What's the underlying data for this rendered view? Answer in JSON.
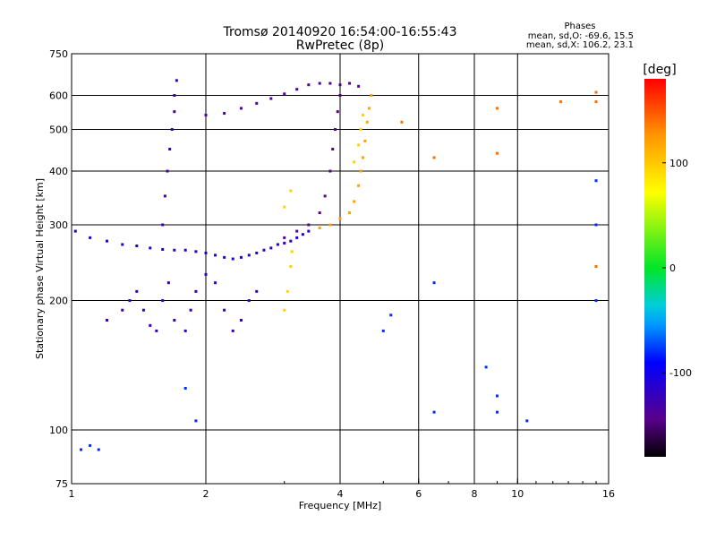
{
  "chart_data": {
    "type": "scatter",
    "title": "Tromsø 20140920 16:54:00-16:55:43",
    "subtitle": "RwPretec (8p)",
    "xlabel": "Frequency [MHz]",
    "ylabel": "Stationary phase Virtual Height [km]",
    "x_scale": "log",
    "y_scale": "log",
    "xlim": [
      1,
      16
    ],
    "ylim": [
      75,
      750
    ],
    "x_ticks": [
      1,
      2,
      4,
      6,
      8,
      10,
      16
    ],
    "x_tick_labels": [
      "1",
      "2",
      "4",
      "6",
      "8",
      "10",
      "16"
    ],
    "y_ticks": [
      75,
      100,
      200,
      300,
      400,
      500,
      600,
      750
    ],
    "y_tick_labels": [
      "75",
      "100",
      "200",
      "300",
      "400",
      "500",
      "600",
      "750"
    ],
    "grid": true,
    "stats": {
      "heading": "Phases",
      "line_o": "mean, sd,O: -69.6, 15.5",
      "line_x": "mean, sd,X: 106.2, 23.1"
    },
    "colorbar": {
      "label": "[deg]",
      "range": [
        -180,
        180
      ],
      "ticks": [
        100,
        0,
        -100
      ],
      "tick_labels": [
        "100",
        "0",
        "-100"
      ],
      "colormap": "rainbow"
    },
    "series": [
      {
        "trace": "lower-F-region-O-trace",
        "phase": -110,
        "points": [
          [
            1.02,
            290
          ],
          [
            1.1,
            280
          ],
          [
            1.2,
            275
          ],
          [
            1.3,
            270
          ],
          [
            1.4,
            268
          ],
          [
            1.5,
            265
          ],
          [
            1.6,
            263
          ],
          [
            1.7,
            262
          ],
          [
            1.8,
            262
          ],
          [
            1.9,
            260
          ],
          [
            2.0,
            258
          ],
          [
            2.1,
            255
          ],
          [
            2.2,
            252
          ],
          [
            2.3,
            250
          ],
          [
            2.4,
            252
          ],
          [
            2.5,
            255
          ],
          [
            2.6,
            258
          ],
          [
            2.7,
            262
          ],
          [
            2.8,
            265
          ],
          [
            2.9,
            270
          ],
          [
            3.0,
            272
          ],
          [
            3.1,
            275
          ],
          [
            3.2,
            280
          ],
          [
            3.3,
            285
          ],
          [
            3.4,
            290
          ]
        ]
      },
      {
        "trace": "E-region-spread",
        "phase": -120,
        "points": [
          [
            1.2,
            180
          ],
          [
            1.3,
            190
          ],
          [
            1.35,
            200
          ],
          [
            1.4,
            210
          ],
          [
            1.45,
            190
          ],
          [
            1.5,
            175
          ],
          [
            1.55,
            170
          ],
          [
            1.6,
            200
          ],
          [
            1.65,
            220
          ],
          [
            1.7,
            180
          ],
          [
            1.8,
            170
          ],
          [
            1.85,
            190
          ],
          [
            1.9,
            210
          ],
          [
            2.0,
            230
          ],
          [
            2.1,
            220
          ],
          [
            2.2,
            190
          ],
          [
            2.3,
            170
          ],
          [
            2.4,
            180
          ],
          [
            2.5,
            200
          ],
          [
            2.6,
            210
          ]
        ]
      },
      {
        "trace": "F-region-vertical-streak",
        "phase": -125,
        "points": [
          [
            1.6,
            300
          ],
          [
            1.62,
            350
          ],
          [
            1.64,
            400
          ],
          [
            1.66,
            450
          ],
          [
            1.68,
            500
          ],
          [
            1.7,
            550
          ],
          [
            1.7,
            600
          ],
          [
            1.72,
            650
          ]
        ]
      },
      {
        "trace": "high-F-blue-cusp",
        "phase": -135,
        "points": [
          [
            2.0,
            540
          ],
          [
            2.2,
            545
          ],
          [
            2.4,
            560
          ],
          [
            2.6,
            575
          ],
          [
            2.8,
            590
          ],
          [
            3.0,
            605
          ],
          [
            3.2,
            620
          ],
          [
            3.4,
            635
          ],
          [
            3.6,
            640
          ],
          [
            3.8,
            640
          ],
          [
            4.0,
            635
          ],
          [
            4.2,
            640
          ],
          [
            4.4,
            630
          ]
        ]
      },
      {
        "trace": "F-layer-rising-blue",
        "phase": -145,
        "points": [
          [
            3.0,
            280
          ],
          [
            3.2,
            290
          ],
          [
            3.4,
            300
          ],
          [
            3.6,
            320
          ],
          [
            3.7,
            350
          ],
          [
            3.8,
            400
          ],
          [
            3.85,
            450
          ],
          [
            3.9,
            500
          ],
          [
            3.95,
            550
          ],
          [
            4.0,
            600
          ]
        ]
      },
      {
        "trace": "X-mode-orange",
        "phase": 120,
        "points": [
          [
            3.6,
            295
          ],
          [
            3.8,
            300
          ],
          [
            4.0,
            310
          ],
          [
            4.2,
            320
          ],
          [
            4.3,
            340
          ],
          [
            4.4,
            370
          ],
          [
            4.45,
            400
          ],
          [
            4.5,
            430
          ],
          [
            4.55,
            470
          ],
          [
            4.6,
            520
          ],
          [
            4.65,
            560
          ],
          [
            4.7,
            600
          ]
        ]
      },
      {
        "trace": "X-mode-yellow",
        "phase": 95,
        "points": [
          [
            3.0,
            190
          ],
          [
            3.05,
            210
          ],
          [
            3.1,
            240
          ],
          [
            3.12,
            260
          ],
          [
            3.0,
            330
          ],
          [
            3.1,
            360
          ],
          [
            4.3,
            420
          ],
          [
            4.4,
            460
          ],
          [
            4.45,
            500
          ],
          [
            4.5,
            540
          ]
        ]
      },
      {
        "trace": "scattered-points",
        "phase": -80,
        "points": [
          [
            1.05,
            90
          ],
          [
            1.1,
            92
          ],
          [
            1.15,
            90
          ],
          [
            1.8,
            125
          ],
          [
            1.9,
            105
          ],
          [
            5.2,
            185
          ],
          [
            5.0,
            170
          ],
          [
            6.5,
            220
          ],
          [
            6.5,
            110
          ],
          [
            8.5,
            140
          ],
          [
            9.0,
            110
          ],
          [
            9.0,
            120
          ],
          [
            10.5,
            105
          ],
          [
            15.0,
            200
          ],
          [
            15.0,
            300
          ],
          [
            15.0,
            380
          ]
        ]
      },
      {
        "trace": "high-freq-orange-scatter",
        "phase": 140,
        "points": [
          [
            5.5,
            520
          ],
          [
            6.5,
            430
          ],
          [
            9.0,
            560
          ],
          [
            9.0,
            440
          ],
          [
            12.5,
            580
          ],
          [
            15.0,
            610
          ],
          [
            15.0,
            580
          ],
          [
            15.0,
            240
          ]
        ]
      }
    ]
  }
}
